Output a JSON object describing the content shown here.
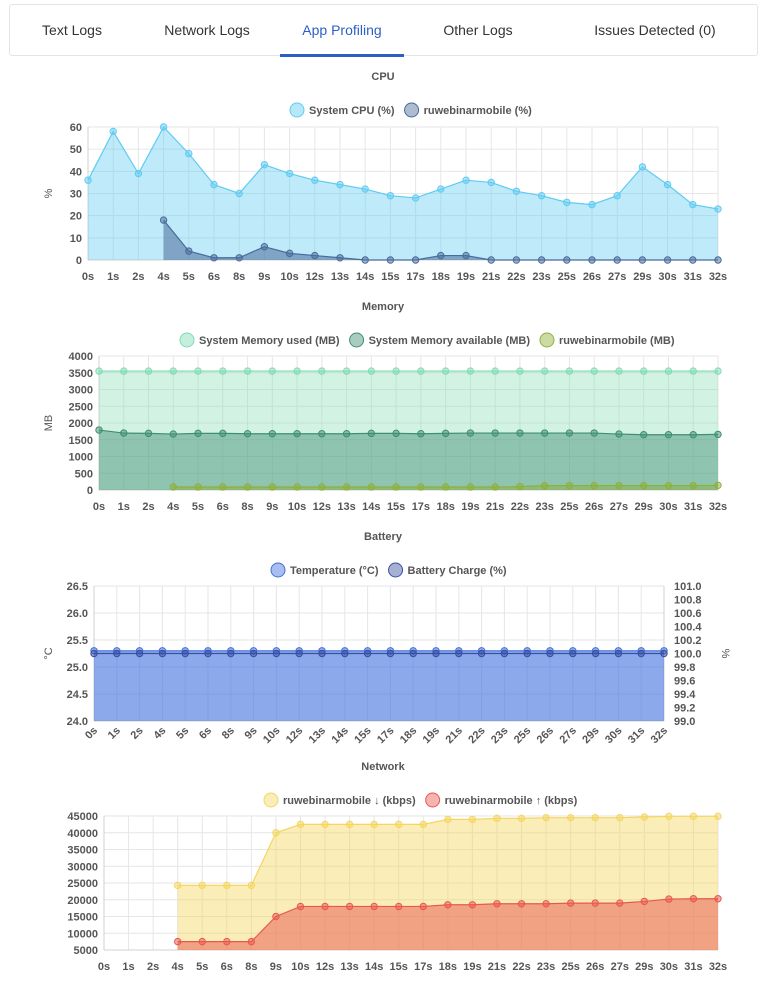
{
  "tabs": [
    {
      "label": "Text Logs",
      "active": false
    },
    {
      "label": "Network Logs",
      "active": false
    },
    {
      "label": "App Profiling",
      "active": true
    },
    {
      "label": "Other Logs",
      "active": false
    },
    {
      "label": "Issues Detected (0)",
      "active": false
    }
  ],
  "colors": {
    "tab_active": "#2c5fc6",
    "cpu_system": "#5fcbf2",
    "cpu_app": "#4a6a9a",
    "mem_used": "#7fdcb2",
    "mem_available": "#3f8f72",
    "mem_app": "#8fb03a",
    "temperature": "#3f6fe0",
    "battery": "#3a4fa0",
    "net_down": "#f5d660",
    "net_up": "#e8584f"
  },
  "chart_data": [
    {
      "type": "area",
      "title": "CPU",
      "ylabel": "%",
      "ylim": [
        0,
        60
      ],
      "yticks": [
        0,
        10,
        20,
        30,
        40,
        50,
        60
      ],
      "grid": true,
      "legend": "top-center",
      "categories": [
        "0s",
        "1s",
        "2s",
        "4s",
        "5s",
        "6s",
        "8s",
        "9s",
        "10s",
        "12s",
        "13s",
        "14s",
        "15s",
        "17s",
        "18s",
        "19s",
        "21s",
        "22s",
        "23s",
        "25s",
        "26s",
        "27s",
        "29s",
        "30s",
        "31s",
        "32s"
      ],
      "series": [
        {
          "name": "System CPU (%)",
          "values": [
            36,
            58,
            39,
            60,
            48,
            34,
            30,
            43,
            39,
            36,
            34,
            32,
            29,
            28,
            32,
            36,
            35,
            31,
            29,
            26,
            25,
            29,
            42,
            34,
            25,
            23
          ]
        },
        {
          "name": "ruwebinarmobile (%)",
          "values": [
            null,
            null,
            null,
            18,
            4,
            1,
            1,
            6,
            3,
            2,
            1,
            0,
            0,
            0,
            2,
            2,
            0,
            0,
            0,
            0,
            0,
            0,
            0,
            0,
            0,
            0
          ]
        }
      ]
    },
    {
      "type": "area",
      "title": "Memory",
      "ylabel": "MB",
      "ylim": [
        0,
        4000
      ],
      "yticks": [
        0,
        500,
        1000,
        1500,
        2000,
        2500,
        3000,
        3500,
        4000
      ],
      "grid": true,
      "legend": "top-center",
      "categories": [
        "0s",
        "1s",
        "2s",
        "4s",
        "5s",
        "6s",
        "8s",
        "9s",
        "10s",
        "12s",
        "13s",
        "14s",
        "15s",
        "17s",
        "18s",
        "19s",
        "21s",
        "22s",
        "23s",
        "25s",
        "26s",
        "27s",
        "29s",
        "30s",
        "31s",
        "32s"
      ],
      "series": [
        {
          "name": "System Memory used (MB)",
          "values": [
            3550,
            3550,
            3550,
            3550,
            3550,
            3550,
            3550,
            3550,
            3550,
            3550,
            3550,
            3550,
            3550,
            3550,
            3550,
            3550,
            3550,
            3550,
            3550,
            3550,
            3550,
            3550,
            3550,
            3550,
            3550,
            3550
          ]
        },
        {
          "name": "System Memory available (MB)",
          "values": [
            1790,
            1700,
            1690,
            1670,
            1690,
            1690,
            1680,
            1680,
            1680,
            1680,
            1680,
            1690,
            1690,
            1680,
            1690,
            1700,
            1700,
            1700,
            1700,
            1700,
            1700,
            1670,
            1650,
            1650,
            1650,
            1660
          ]
        },
        {
          "name": "ruwebinarmobile (MB)",
          "values": [
            null,
            null,
            null,
            90,
            90,
            90,
            90,
            90,
            90,
            90,
            90,
            90,
            90,
            90,
            90,
            90,
            90,
            100,
            130,
            130,
            130,
            130,
            130,
            130,
            130,
            140
          ]
        }
      ]
    },
    {
      "type": "area",
      "title": "Battery",
      "ylabel": "°C",
      "y2label": "%",
      "ylim": [
        24,
        26.5
      ],
      "yticks": [
        "24.0",
        "24.5",
        "25.0",
        "25.5",
        "26.0",
        "26.5"
      ],
      "y2lim": [
        99,
        101
      ],
      "y2ticks": [
        "99.0",
        "99.2",
        "99.4",
        "99.6",
        "99.8",
        "100.0",
        "100.2",
        "100.4",
        "100.6",
        "100.8",
        "101.0"
      ],
      "grid": true,
      "legend": "top-center",
      "categories": [
        "0s",
        "1s",
        "2s",
        "4s",
        "5s",
        "6s",
        "8s",
        "9s",
        "10s",
        "12s",
        "13s",
        "14s",
        "15s",
        "17s",
        "18s",
        "19s",
        "21s",
        "22s",
        "23s",
        "25s",
        "26s",
        "27s",
        "29s",
        "30s",
        "31s",
        "32s"
      ],
      "series": [
        {
          "name": "Temperature (°C)",
          "axis": "left",
          "values": [
            25.3,
            25.3,
            25.3,
            25.3,
            25.3,
            25.3,
            25.3,
            25.3,
            25.3,
            25.3,
            25.3,
            25.3,
            25.3,
            25.3,
            25.3,
            25.3,
            25.3,
            25.3,
            25.3,
            25.3,
            25.3,
            25.3,
            25.3,
            25.3,
            25.3,
            25.3
          ]
        },
        {
          "name": "Battery Charge (%)",
          "axis": "right",
          "values": [
            100,
            100,
            100,
            100,
            100,
            100,
            100,
            100,
            100,
            100,
            100,
            100,
            100,
            100,
            100,
            100,
            100,
            100,
            100,
            100,
            100,
            100,
            100,
            100,
            100,
            100
          ]
        }
      ]
    },
    {
      "type": "area",
      "title": "Network",
      "ylabel": "",
      "ylim": [
        5000,
        45000
      ],
      "yticks": [
        5000,
        10000,
        15000,
        20000,
        25000,
        30000,
        35000,
        40000,
        45000
      ],
      "grid": true,
      "legend": "top-center",
      "categories": [
        "0s",
        "1s",
        "2s",
        "4s",
        "5s",
        "6s",
        "8s",
        "9s",
        "10s",
        "12s",
        "13s",
        "14s",
        "15s",
        "17s",
        "18s",
        "19s",
        "21s",
        "22s",
        "23s",
        "25s",
        "26s",
        "27s",
        "29s",
        "30s",
        "31s",
        "32s"
      ],
      "series": [
        {
          "name": "ruwebinarmobile ↓ (kbps)",
          "values": [
            null,
            null,
            null,
            24300,
            24300,
            24300,
            24300,
            40000,
            42500,
            42500,
            42500,
            42500,
            42500,
            42500,
            44000,
            44000,
            44300,
            44300,
            44500,
            44500,
            44500,
            44500,
            44700,
            44900,
            44900,
            44900
          ]
        },
        {
          "name": "ruwebinarmobile ↑ (kbps)",
          "values": [
            null,
            null,
            null,
            7500,
            7500,
            7500,
            7500,
            15000,
            18000,
            18000,
            18000,
            18000,
            18000,
            18000,
            18500,
            18500,
            18800,
            18800,
            18800,
            19000,
            19000,
            19000,
            19500,
            20200,
            20300,
            20300
          ]
        }
      ]
    }
  ]
}
